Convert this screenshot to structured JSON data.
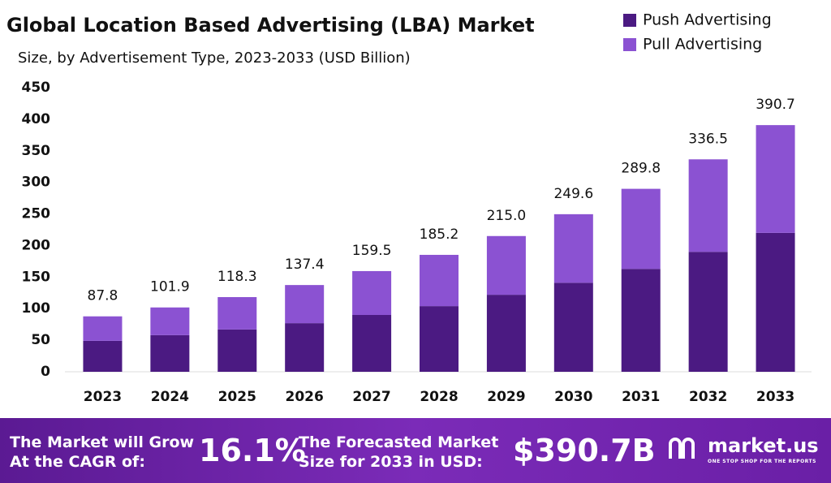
{
  "chart_data": {
    "type": "stacked-bar",
    "title": "Global Location Based Advertising (LBA) Market",
    "subtitle": "Size, by Advertisement Type, 2023-2033 (USD Billion)",
    "categories": [
      "2023",
      "2024",
      "2025",
      "2026",
      "2027",
      "2028",
      "2029",
      "2030",
      "2031",
      "2032",
      "2033"
    ],
    "series": [
      {
        "name": "Push Advertising",
        "color": "#4b1a82",
        "values": [
          49,
          58,
          67,
          77,
          90,
          104,
          122,
          141,
          163,
          190,
          220
        ]
      },
      {
        "name": "Pull Advertising",
        "color": "#8b52d2",
        "values": [
          38.8,
          43.9,
          51.3,
          60.4,
          69.5,
          81.2,
          93,
          108.6,
          126.8,
          146.5,
          170.7
        ]
      }
    ],
    "totals": [
      87.8,
      101.9,
      118.3,
      137.4,
      159.5,
      185.2,
      215,
      249.6,
      289.8,
      336.5,
      390.7
    ],
    "total_labels": [
      "87.8",
      "101.9",
      "118.3",
      "137.4",
      "159.5",
      "185.2",
      "215.0",
      "249.6",
      "289.8",
      "336.5",
      "390.7"
    ],
    "ylim": [
      0,
      450
    ],
    "yticks": [
      0,
      50,
      100,
      150,
      200,
      250,
      300,
      350,
      400,
      450
    ],
    "grid": false,
    "legend": "top-right"
  },
  "banner": {
    "cagr_text": "The Market will Grow At the CAGR of:",
    "cagr": "16.1%",
    "forecast_text": "The Forecasted Market Size for 2033 in USD:",
    "forecast": "$390.7B",
    "brand": "market.us",
    "tagline": "ONE STOP SHOP FOR THE REPORTS"
  }
}
